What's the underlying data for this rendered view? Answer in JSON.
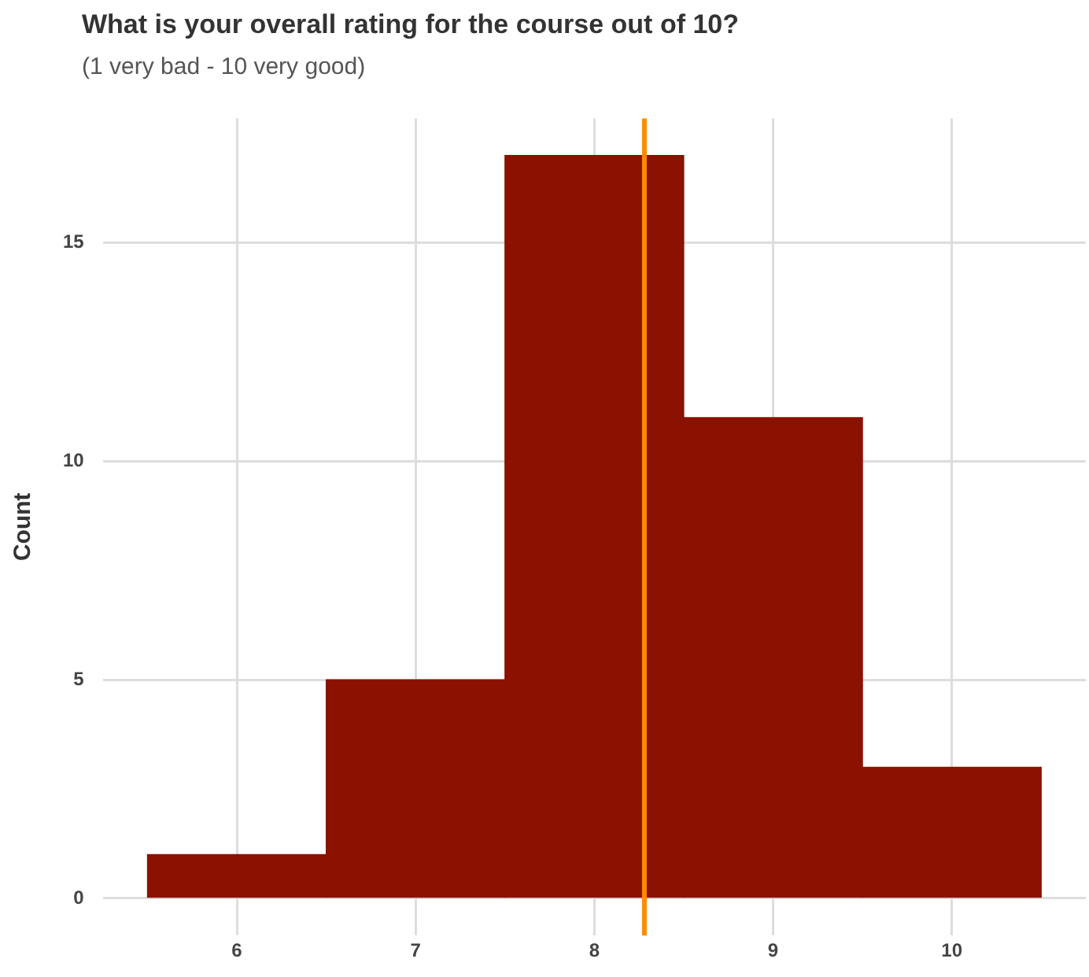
{
  "chart_data": {
    "type": "histogram",
    "title": "What is your overall rating for the course out of 10?",
    "subtitle": "(1 very bad - 10 very good)",
    "ylabel": "Count",
    "bins": [
      5.5,
      6.5,
      7.5,
      8.5,
      9.5,
      10.5
    ],
    "values": [
      1,
      5,
      17,
      11,
      3
    ],
    "color": "#8b1100",
    "xlim": [
      5.25,
      10.75
    ],
    "xticks": [
      6,
      7,
      8,
      9,
      10
    ],
    "ylim": [
      -0.85,
      17.85
    ],
    "yticks": [
      0,
      5,
      10,
      15
    ],
    "grid": true,
    "legend": false,
    "ref_lines": [
      {
        "axis": "x",
        "value": 8.28,
        "color": "#ff8c00"
      }
    ]
  }
}
